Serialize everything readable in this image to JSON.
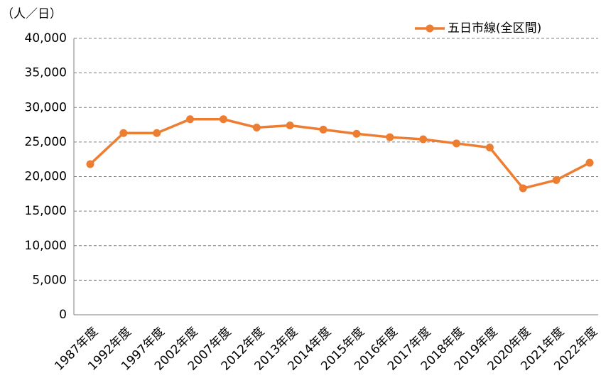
{
  "chart_data": {
    "type": "line",
    "y_axis_label": "（人／日）",
    "categories": [
      "1987年度",
      "1992年度",
      "1997年度",
      "2002年度",
      "2007年度",
      "2012年度",
      "2013年度",
      "2014年度",
      "2015年度",
      "2016年度",
      "2017年度",
      "2018年度",
      "2019年度",
      "2020年度",
      "2021年度",
      "2022年度"
    ],
    "series": [
      {
        "name": "五日市線(全区間)",
        "color": "#ed7d31",
        "values": [
          21800,
          26300,
          26300,
          28300,
          28300,
          27100,
          27400,
          26800,
          26200,
          25700,
          25400,
          24800,
          24200,
          18300,
          19500,
          22000
        ]
      }
    ],
    "ylim": [
      0,
      40000
    ],
    "yticks": [
      0,
      {
        "value": 5000,
        "label": "5,000"
      },
      {
        "value": 10000,
        "label": "10,000"
      },
      {
        "value": 15000,
        "label": "15,000"
      },
      {
        "value": 20000,
        "label": "20,000"
      },
      {
        "value": 25000,
        "label": "25,000"
      },
      {
        "value": 30000,
        "label": "30,000"
      },
      {
        "value": 35000,
        "label": "35,000"
      },
      {
        "value": 40000,
        "label": "40,000"
      }
    ],
    "grid": true,
    "legend": "top-right"
  }
}
